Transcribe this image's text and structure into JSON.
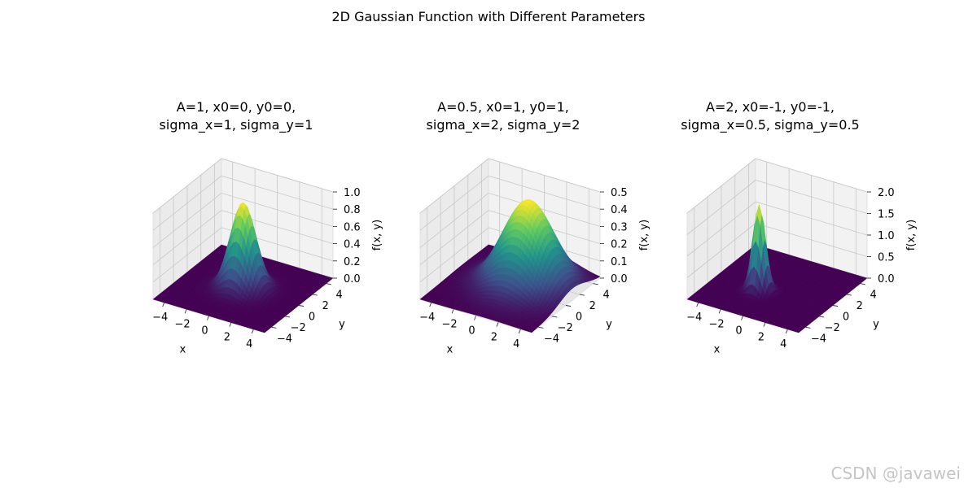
{
  "figure_title": "2D Gaussian Function with Different Parameters",
  "watermark": "CSDN @javawei",
  "chart_data": [
    {
      "type": "surface",
      "title": "A=1, x0=0, y0=0,\nsigma_x=1, sigma_y=1",
      "title_lines": [
        "A=1, x0=0, y0=0,",
        "sigma_x=1, sigma_y=1"
      ],
      "A": 1,
      "x0": 0,
      "y0": 0,
      "sigma_x": 1,
      "sigma_y": 1,
      "xlabel": "x",
      "ylabel": "y",
      "zlabel": "f(x, y)",
      "xlim": [
        -5,
        5
      ],
      "ylim": [
        -5,
        5
      ],
      "zlim": [
        0,
        1.0
      ],
      "xticks": [
        "−4",
        "−2",
        "0",
        "2",
        "4"
      ],
      "yticks": [
        "−4",
        "−2",
        "0",
        "2",
        "4"
      ],
      "zticks": [
        "0.0",
        "0.2",
        "0.4",
        "0.6",
        "0.8",
        "1.0"
      ],
      "colormap": "viridis"
    },
    {
      "type": "surface",
      "title": "A=0.5, x0=1, y0=1,\nsigma_x=2, sigma_y=2",
      "title_lines": [
        "A=0.5, x0=1, y0=1,",
        "sigma_x=2, sigma_y=2"
      ],
      "A": 0.5,
      "x0": 1,
      "y0": 1,
      "sigma_x": 2,
      "sigma_y": 2,
      "xlabel": "x",
      "ylabel": "y",
      "zlabel": "f(x, y)",
      "xlim": [
        -5,
        5
      ],
      "ylim": [
        -5,
        5
      ],
      "zlim": [
        0,
        0.5
      ],
      "xticks": [
        "−4",
        "−2",
        "0",
        "2",
        "4"
      ],
      "yticks": [
        "−4",
        "−2",
        "0",
        "2",
        "4"
      ],
      "zticks": [
        "0.0",
        "0.1",
        "0.2",
        "0.3",
        "0.4",
        "0.5"
      ],
      "colormap": "viridis"
    },
    {
      "type": "surface",
      "title": "A=2, x0=-1, y0=-1,\nsigma_x=0.5, sigma_y=0.5",
      "title_lines": [
        "A=2, x0=-1, y0=-1,",
        "sigma_x=0.5, sigma_y=0.5"
      ],
      "A": 2,
      "x0": -1,
      "y0": -1,
      "sigma_x": 0.5,
      "sigma_y": 0.5,
      "xlabel": "x",
      "ylabel": "y",
      "zlabel": "f(x, y)",
      "xlim": [
        -5,
        5
      ],
      "ylim": [
        -5,
        5
      ],
      "zlim": [
        0,
        2.0
      ],
      "xticks": [
        "−4",
        "−2",
        "0",
        "2",
        "4"
      ],
      "yticks": [
        "−4",
        "−2",
        "0",
        "2",
        "4"
      ],
      "zticks": [
        "0.0",
        "0.5",
        "1.0",
        "1.5",
        "2.0"
      ],
      "colormap": "viridis"
    }
  ]
}
